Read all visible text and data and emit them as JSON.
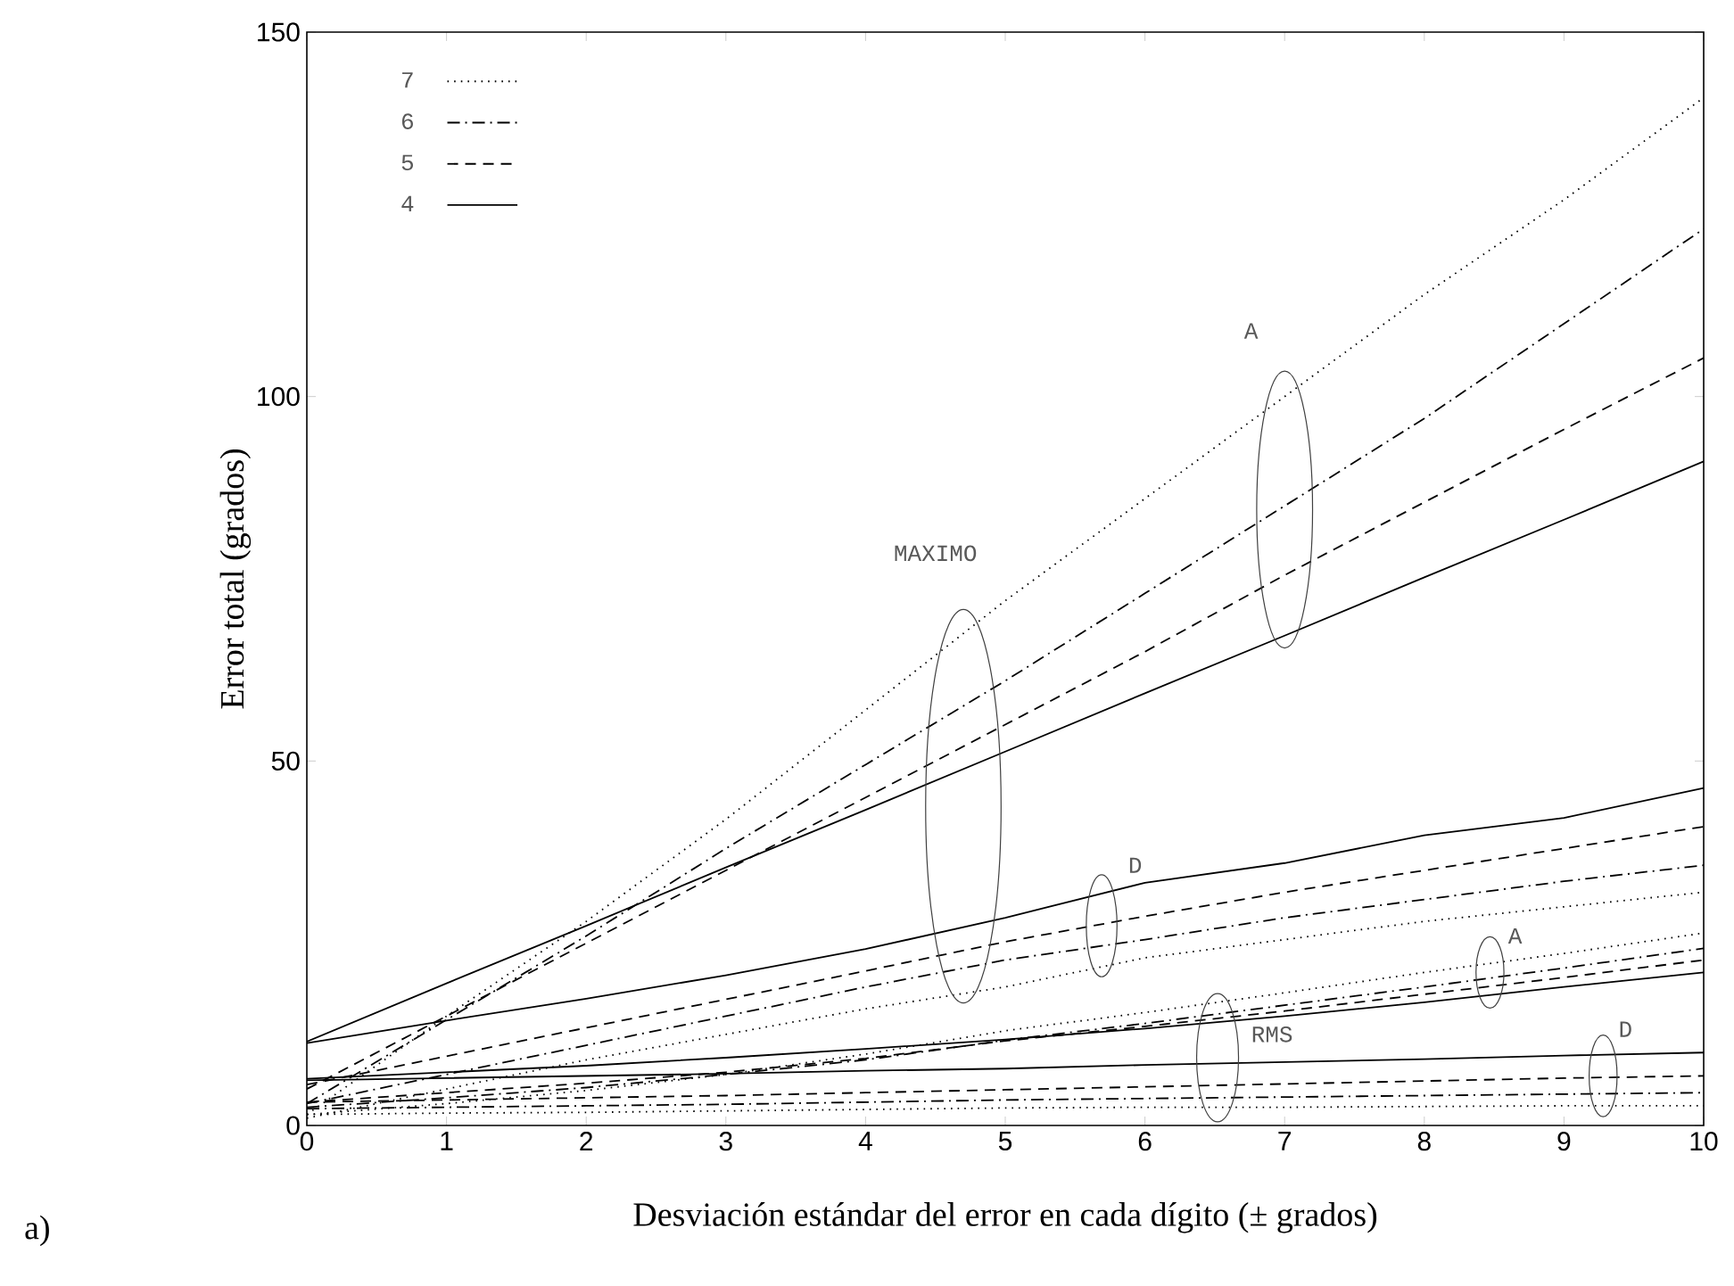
{
  "chart_data": {
    "type": "line",
    "xlabel": "Desviación estándar del error en cada dígito (± grados)",
    "ylabel": "Error total (grados)",
    "x": [
      0,
      1,
      2,
      3,
      4,
      5,
      6,
      7,
      8,
      9,
      10
    ],
    "xlim": [
      0,
      10
    ],
    "ylim": [
      0,
      150
    ],
    "xticks": [
      0,
      1,
      2,
      3,
      4,
      5,
      6,
      7,
      8,
      9,
      10
    ],
    "yticks": [
      0,
      50,
      100,
      150
    ],
    "legend": "top left",
    "series": [
      {
        "name": "7",
        "color": "#000000",
        "line_style": "dotted",
        "values": [
          1.5,
          15,
          28,
          42,
          57,
          72,
          86,
          100,
          114,
          127,
          141
        ]
      },
      {
        "name": "6",
        "color": "#000000",
        "line_style": "dashdot",
        "values": [
          3,
          14.5,
          26,
          38,
          49.5,
          61,
          73,
          85,
          97,
          110,
          123
        ]
      },
      {
        "name": "5",
        "color": "#000000",
        "line_style": "dashed",
        "values": [
          5,
          15,
          25,
          35,
          45,
          55,
          65,
          75.5,
          85.5,
          95.5,
          105.3
        ]
      },
      {
        "name": "4",
        "color": "#000000",
        "line_style": "solid",
        "values": [
          11.5,
          19.5,
          27.4,
          35.4,
          43.3,
          51.3,
          59.3,
          67.2,
          75.2,
          83.1,
          91.1
        ]
      },
      {
        "color": "#000000",
        "line_style": "dotted",
        "values": [
          1,
          5,
          9,
          12.5,
          16,
          19,
          23,
          25.5,
          28,
          30,
          32
        ]
      },
      {
        "color": "#000000",
        "line_style": "dashdot",
        "values": [
          3,
          7,
          11,
          15,
          19,
          22.7,
          25.5,
          28.5,
          31,
          33.5,
          35.7
        ]
      },
      {
        "color": "#000000",
        "line_style": "dashed",
        "values": [
          5.6,
          9.5,
          13.4,
          17.3,
          21.2,
          25.2,
          28.7,
          32,
          35,
          38,
          41
        ]
      },
      {
        "color": "#000000",
        "line_style": "solid",
        "values": [
          11.3,
          14.4,
          17.4,
          20.6,
          24.2,
          28.5,
          33.3,
          36,
          39.8,
          42.2,
          46.3
        ]
      },
      {
        "color": "#000000",
        "line_style": "dotted",
        "values": [
          1.5,
          3,
          4.8,
          7,
          9.8,
          13,
          15.5,
          18.2,
          21,
          23.6,
          26.4
        ]
      },
      {
        "color": "#000000",
        "line_style": "dashdot",
        "values": [
          2.5,
          3.8,
          5.2,
          7,
          9,
          11.7,
          14,
          16.5,
          19,
          21.6,
          24.3
        ]
      },
      {
        "color": "#000000",
        "line_style": "dashed",
        "values": [
          3.2,
          4.5,
          5.8,
          7.3,
          9.2,
          11.6,
          13.6,
          15.7,
          18,
          20.3,
          22.7
        ]
      },
      {
        "color": "#000000",
        "line_style": "solid",
        "values": [
          6.4,
          7.3,
          8.2,
          9.3,
          10.5,
          11.8,
          13.3,
          15,
          16.9,
          19,
          21
        ]
      },
      {
        "color": "#000000",
        "line_style": "dotted",
        "values": [
          1.5,
          1.7,
          1.8,
          2,
          2.2,
          2.4,
          2.5,
          2.5,
          2.6,
          2.7,
          2.7
        ]
      },
      {
        "color": "#000000",
        "line_style": "dashdot",
        "values": [
          2.3,
          2.5,
          2.7,
          2.9,
          3.2,
          3.5,
          3.7,
          3.9,
          4.1,
          4.3,
          4.5
        ]
      },
      {
        "color": "#000000",
        "line_style": "dashed",
        "values": [
          3.2,
          3.5,
          3.8,
          4.1,
          4.5,
          4.9,
          5.3,
          5.7,
          6.1,
          6.5,
          6.8
        ]
      },
      {
        "color": "#000000",
        "line_style": "solid",
        "values": [
          6.2,
          6.5,
          6.8,
          7.1,
          7.5,
          7.8,
          8.3,
          8.7,
          9.1,
          9.6,
          10
        ]
      }
    ],
    "annotations": [
      "MAXIMO",
      "A",
      "D",
      "A",
      "RMS",
      "D",
      "a)"
    ]
  }
}
